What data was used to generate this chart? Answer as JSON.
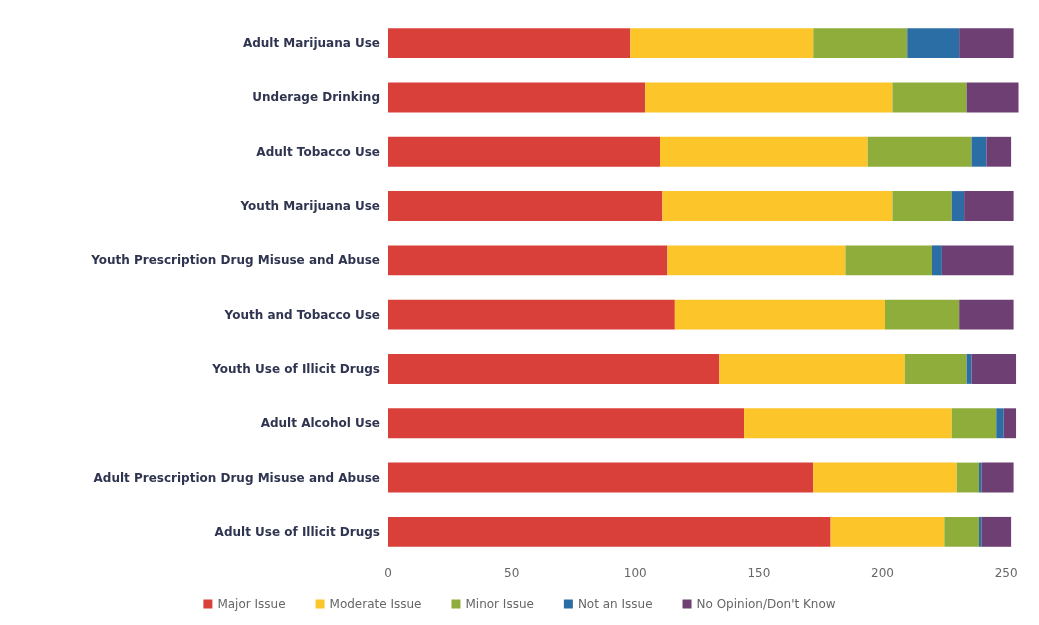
{
  "chart_data": {
    "type": "bar",
    "orientation": "horizontal",
    "stacked": true,
    "categories": [
      "Adult Marijuana Use",
      "Underage Drinking",
      "Adult Tobacco Use",
      "Youth Marijuana Use",
      "Youth Prescription Drug Misuse and Abuse",
      "Youth and Tobacco Use",
      "Youth Use of Illicit Drugs",
      "Adult Alcohol Use",
      "Adult Prescription Drug Misuse and Abuse",
      "Adult Use of Illicit Drugs"
    ],
    "series": [
      {
        "name": "Major Issue",
        "color": "#d9403a",
        "values": [
          98,
          104,
          110,
          111,
          113,
          116,
          134,
          144,
          172,
          179
        ]
      },
      {
        "name": "Moderate Issue",
        "color": "#fcc52a",
        "values": [
          74,
          100,
          84,
          93,
          72,
          85,
          75,
          84,
          58,
          46
        ]
      },
      {
        "name": "Minor Issue",
        "color": "#8fad3a",
        "values": [
          38,
          30,
          42,
          24,
          35,
          30,
          25,
          18,
          9,
          14
        ]
      },
      {
        "name": "Not an Issue",
        "color": "#2b6ea6",
        "values": [
          21,
          0,
          6,
          5,
          4,
          0,
          2,
          3,
          1,
          1
        ]
      },
      {
        "name": "No Opinion/Don't Know",
        "color": "#6d3f73",
        "values": [
          22,
          21,
          10,
          20,
          29,
          22,
          18,
          5,
          13,
          12
        ]
      }
    ],
    "xlim": [
      0,
      256
    ],
    "xticks": [
      0,
      50,
      100,
      150,
      200,
      250
    ],
    "grid": false,
    "legend": "bottom"
  }
}
